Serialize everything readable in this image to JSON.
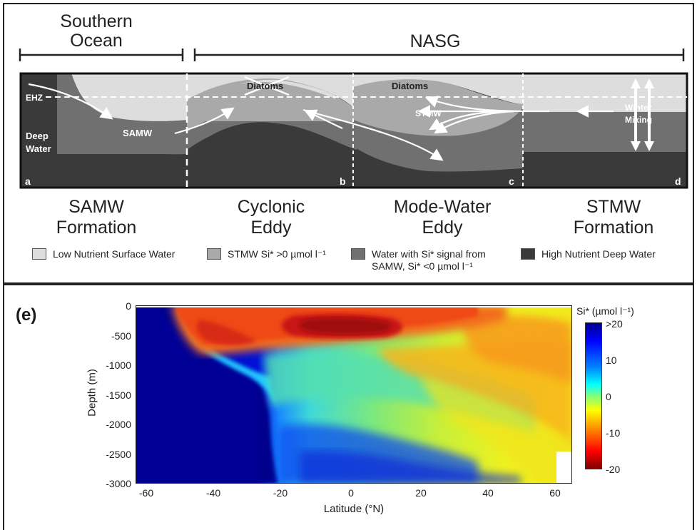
{
  "top_panel": {
    "regions": {
      "southern_ocean": [
        "Southern",
        "Ocean"
      ],
      "nasg": "NASG"
    },
    "labels": {
      "ehz": "EHZ",
      "deep_water": [
        "Deep",
        "Water"
      ],
      "samw": "SAMW",
      "diatoms_crossed": "Diatoms",
      "diatoms": "Diatoms",
      "stmw": "STMW",
      "winter_mixing": [
        "Winter",
        "Mixing"
      ]
    },
    "panel_letters": [
      "a",
      "b",
      "c",
      "d"
    ],
    "captions": {
      "a": [
        "SAMW",
        "Formation"
      ],
      "b": [
        "Cyclonic",
        "Eddy"
      ],
      "c": [
        "Mode-Water",
        "Eddy"
      ],
      "d": [
        "STMW",
        "Formation"
      ]
    },
    "legend": [
      {
        "label": "Low Nutrient Surface Water",
        "color": "#dddddd"
      },
      {
        "label": "STMW Si* >0 µmol l⁻¹",
        "color": "#a9a9a9"
      },
      {
        "label": "Water with Si* signal from SAMW, Si* <0 µmol l⁻¹",
        "color": "#707070"
      },
      {
        "label": "High Nutrient Deep Water",
        "color": "#3a3a3a"
      }
    ]
  },
  "bottom_panel": {
    "panel_letter": "(e)",
    "y_axis_label": "Depth (m)",
    "x_axis_label": "Latitude (°N)",
    "colorbar_label": "Si* (µmol l⁻¹)",
    "colorbar_ticks": [
      ">20",
      "10",
      "0",
      "-10",
      "-20"
    ]
  },
  "chart_data": {
    "type": "heatmap",
    "xlabel": "Latitude (°N)",
    "ylabel": "Depth (m)",
    "x_ticks": [
      "-60",
      "-40",
      "-20",
      "0",
      "20",
      "40",
      "60"
    ],
    "y_ticks": [
      "0",
      "-500",
      "-1000",
      "-1500",
      "-2000",
      "-2500",
      "-3000"
    ],
    "xlim": [
      -65,
      65
    ],
    "ylim": [
      -3000,
      0
    ],
    "colorbar_range": [
      -20,
      20
    ],
    "colorscale": "jet"
  },
  "colors": {
    "light_surface": "#dddddd",
    "stmw": "#a9a9a9",
    "samw_signal": "#707070",
    "deep": "#3a3a3a"
  }
}
